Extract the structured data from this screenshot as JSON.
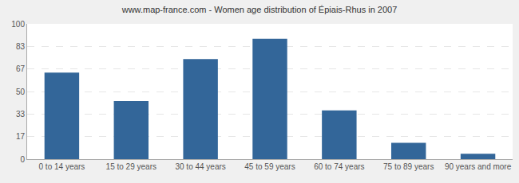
{
  "chart_data": {
    "type": "bar",
    "title": "www.map-france.com - Women age distribution of Épiais-Rhus in 2007",
    "categories": [
      "0 to 14 years",
      "15 to 29 years",
      "30 to 44 years",
      "45 to 59 years",
      "60 to 74 years",
      "75 to 89 years",
      "90 years and more"
    ],
    "values": [
      64,
      43,
      74,
      89,
      36,
      12,
      4
    ],
    "color": "#336699",
    "ylim": [
      0,
      100
    ],
    "yticks": [
      0,
      17,
      33,
      50,
      67,
      83,
      100
    ],
    "grid": true
  }
}
